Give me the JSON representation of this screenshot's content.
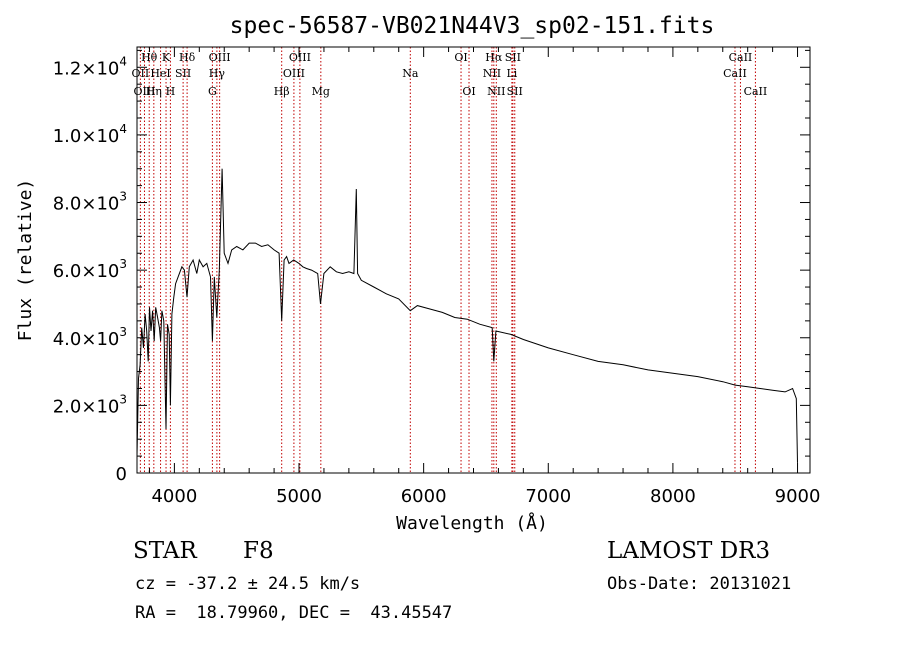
{
  "chart_data": {
    "type": "line",
    "title": "spec-56587-VB021N44V3_sp02-151.fits",
    "xlabel": "Wavelength (Å)",
    "ylabel": "Flux (relative)",
    "xlim": [
      3700,
      9100
    ],
    "ylim": [
      0,
      12600
    ],
    "x_ticks": [
      {
        "value": 4000,
        "label": "4000"
      },
      {
        "value": 5000,
        "label": "5000"
      },
      {
        "value": 6000,
        "label": "6000"
      },
      {
        "value": 7000,
        "label": "7000"
      },
      {
        "value": 8000,
        "label": "8000"
      },
      {
        "value": 9000,
        "label": "9000"
      }
    ],
    "y_ticks": [
      {
        "value": 0,
        "mant": "0",
        "exp": ""
      },
      {
        "value": 2000,
        "mant": "2.0×10",
        "exp": "3"
      },
      {
        "value": 4000,
        "mant": "4.0×10",
        "exp": "3"
      },
      {
        "value": 6000,
        "mant": "6.0×10",
        "exp": "3"
      },
      {
        "value": 8000,
        "mant": "8.0×10",
        "exp": "3"
      },
      {
        "value": 10000,
        "mant": "1.0×10",
        "exp": "4"
      },
      {
        "value": 12000,
        "mant": "1.2×10",
        "exp": "4"
      }
    ],
    "line_color": "#000000",
    "marker_color": "#c00000",
    "spectrum": [
      [
        3700,
        500
      ],
      [
        3712,
        2800
      ],
      [
        3725,
        3200
      ],
      [
        3738,
        4300
      ],
      [
        3752,
        3700
      ],
      [
        3765,
        4700
      ],
      [
        3778,
        4200
      ],
      [
        3790,
        3300
      ],
      [
        3800,
        4900
      ],
      [
        3812,
        4200
      ],
      [
        3825,
        4800
      ],
      [
        3838,
        3900
      ],
      [
        3850,
        4900
      ],
      [
        3865,
        4600
      ],
      [
        3880,
        4300
      ],
      [
        3889,
        3900
      ],
      [
        3900,
        4800
      ],
      [
        3915,
        4500
      ],
      [
        3933,
        1300
      ],
      [
        3945,
        4400
      ],
      [
        3958,
        4100
      ],
      [
        3968,
        2000
      ],
      [
        3980,
        4700
      ],
      [
        3995,
        5200
      ],
      [
        4010,
        5600
      ],
      [
        4030,
        5800
      ],
      [
        4060,
        6100
      ],
      [
        4080,
        6000
      ],
      [
        4101,
        5200
      ],
      [
        4120,
        6100
      ],
      [
        4150,
        6300
      ],
      [
        4180,
        5900
      ],
      [
        4200,
        6300
      ],
      [
        4230,
        6100
      ],
      [
        4260,
        6200
      ],
      [
        4290,
        5800
      ],
      [
        4305,
        3900
      ],
      [
        4320,
        5800
      ],
      [
        4340,
        4600
      ],
      [
        4360,
        6000
      ],
      [
        4383,
        9000
      ],
      [
        4400,
        6500
      ],
      [
        4430,
        6200
      ],
      [
        4460,
        6600
      ],
      [
        4500,
        6700
      ],
      [
        4550,
        6600
      ],
      [
        4600,
        6800
      ],
      [
        4650,
        6800
      ],
      [
        4700,
        6700
      ],
      [
        4750,
        6750
      ],
      [
        4800,
        6600
      ],
      [
        4840,
        6500
      ],
      [
        4861,
        4500
      ],
      [
        4880,
        6300
      ],
      [
        4900,
        6400
      ],
      [
        4920,
        6200
      ],
      [
        4957,
        6300
      ],
      [
        5000,
        6200
      ],
      [
        5030,
        6100
      ],
      [
        5060,
        6050
      ],
      [
        5100,
        6000
      ],
      [
        5150,
        5900
      ],
      [
        5172,
        5000
      ],
      [
        5200,
        5900
      ],
      [
        5250,
        6100
      ],
      [
        5300,
        5950
      ],
      [
        5350,
        5900
      ],
      [
        5400,
        5950
      ],
      [
        5440,
        5900
      ],
      [
        5460,
        8400
      ],
      [
        5470,
        5900
      ],
      [
        5500,
        5700
      ],
      [
        5600,
        5500
      ],
      [
        5700,
        5300
      ],
      [
        5800,
        5150
      ],
      [
        5893,
        4800
      ],
      [
        5950,
        4950
      ],
      [
        6050,
        4850
      ],
      [
        6150,
        4750
      ],
      [
        6250,
        4600
      ],
      [
        6350,
        4550
      ],
      [
        6450,
        4400
      ],
      [
        6550,
        4300
      ],
      [
        6563,
        3300
      ],
      [
        6580,
        4200
      ],
      [
        6700,
        4100
      ],
      [
        6800,
        3950
      ],
      [
        7000,
        3700
      ],
      [
        7200,
        3500
      ],
      [
        7400,
        3300
      ],
      [
        7600,
        3200
      ],
      [
        7800,
        3050
      ],
      [
        8000,
        2950
      ],
      [
        8200,
        2850
      ],
      [
        8400,
        2700
      ],
      [
        8500,
        2600
      ],
      [
        8600,
        2550
      ],
      [
        8700,
        2500
      ],
      [
        8800,
        2450
      ],
      [
        8900,
        2400
      ],
      [
        8960,
        2500
      ],
      [
        8990,
        2200
      ],
      [
        9000,
        300
      ]
    ],
    "lines": [
      {
        "name": "CaII K",
        "label": "K",
        "wave": 3933,
        "row": 1
      },
      {
        "name": "CaII H",
        "label": "H",
        "wave": 3968,
        "row": 3
      },
      {
        "name": "Hθ",
        "label": "Hθ",
        "wave": 3798,
        "row": 1
      },
      {
        "name": "Hη",
        "label": "Hη",
        "wave": 3835,
        "row": 3
      },
      {
        "name": "HeI",
        "label": "HeI",
        "wave": 3889,
        "row": 2
      },
      {
        "name": "OII",
        "label": "OII",
        "wave": 3727,
        "row": 2
      },
      {
        "name": "OIII",
        "label": "OIII",
        "wave": 3760,
        "row": 3
      },
      {
        "name": "SII",
        "label": "SII",
        "wave": 4070,
        "row": 2
      },
      {
        "name": "Hδ",
        "label": "Hδ",
        "wave": 4102,
        "row": 1
      },
      {
        "name": "G band",
        "label": "G",
        "wave": 4305,
        "row": 3
      },
      {
        "name": "Hγ",
        "label": "Hγ",
        "wave": 4341,
        "row": 2
      },
      {
        "name": "OIII 4363",
        "label": "OIII",
        "wave": 4363,
        "row": 1
      },
      {
        "name": "Hβ",
        "label": "Hβ",
        "wave": 4861,
        "row": 3
      },
      {
        "name": "OIII 4959",
        "label": "OIII",
        "wave": 4959,
        "row": 2
      },
      {
        "name": "OIII 5007",
        "label": "OIII",
        "wave": 5007,
        "row": 1
      },
      {
        "name": "Mg",
        "label": "Mg",
        "wave": 5175,
        "row": 3
      },
      {
        "name": "Na",
        "label": "Na",
        "wave": 5893,
        "row": 2
      },
      {
        "name": "OI 6300",
        "label": "OI",
        "wave": 6300,
        "row": 1
      },
      {
        "name": "OI 6364",
        "label": "OI",
        "wave": 6364,
        "row": 3
      },
      {
        "name": "NII 6548",
        "label": "NII",
        "wave": 6548,
        "row": 2
      },
      {
        "name": "Hα",
        "label": "Hα",
        "wave": 6563,
        "row": 1
      },
      {
        "name": "NII 6583",
        "label": "NII",
        "wave": 6583,
        "row": 3
      },
      {
        "name": "Li",
        "label": "Li",
        "wave": 6708,
        "row": 2
      },
      {
        "name": "SII 6716",
        "label": "SII",
        "wave": 6716,
        "row": 1
      },
      {
        "name": "SII 6731",
        "label": "SII",
        "wave": 6731,
        "row": 3
      },
      {
        "name": "CaII 8498",
        "label": "CaII",
        "wave": 8498,
        "row": 2
      },
      {
        "name": "CaII 8542",
        "label": "CaII",
        "wave": 8542,
        "row": 1
      },
      {
        "name": "CaII 8662",
        "label": "CaII",
        "wave": 8662,
        "row": 3
      }
    ]
  },
  "info": {
    "class_label": "STAR",
    "subclass": "F8",
    "survey": "LAMOST DR3",
    "redshift": "cz = -37.2 ± 24.5 km/s",
    "obs_date": "Obs-Date: 20131021",
    "coords": "RA =  18.79960, DEC =  43.45547"
  }
}
